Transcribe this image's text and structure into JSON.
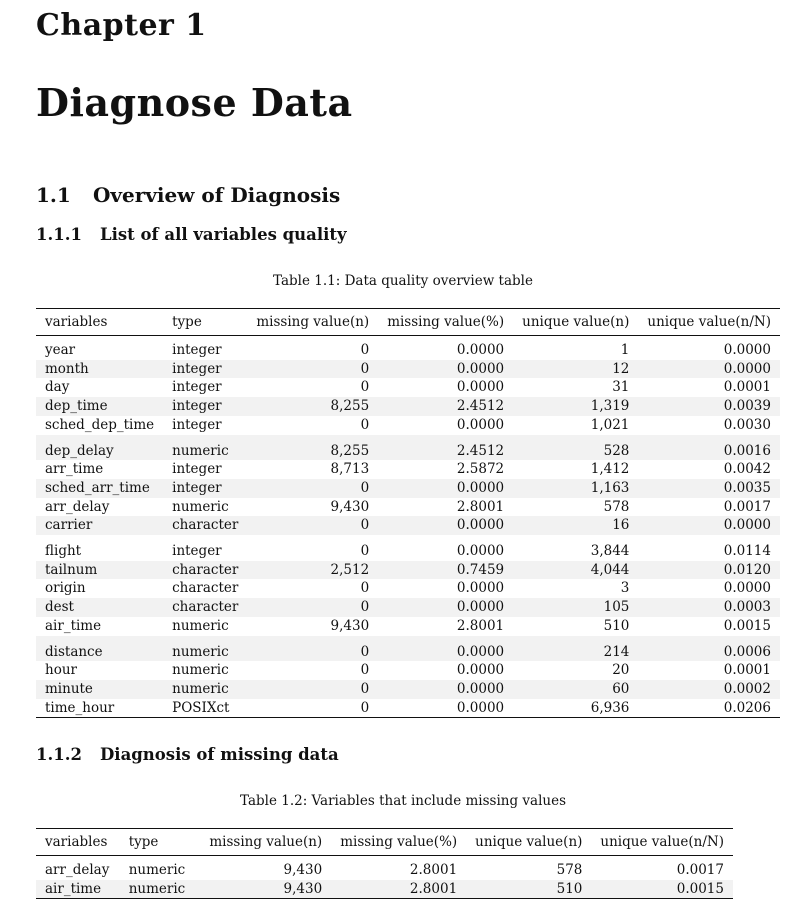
{
  "chapter": {
    "label": "Chapter 1",
    "title": "Diagnose Data"
  },
  "section": {
    "number": "1.1",
    "title": "Overview of Diagnosis"
  },
  "subsection1": {
    "number": "1.1.1",
    "title": "List of all variables quality"
  },
  "table1": {
    "caption": "Table 1.1: Data quality overview table",
    "headers": [
      "variables",
      "type",
      "missing value(n)",
      "missing value(%)",
      "unique value(n)",
      "unique value(n/N)"
    ],
    "rows": [
      [
        "year",
        "integer",
        "0",
        "0.0000",
        "1",
        "0.0000"
      ],
      [
        "month",
        "integer",
        "0",
        "0.0000",
        "12",
        "0.0000"
      ],
      [
        "day",
        "integer",
        "0",
        "0.0000",
        "31",
        "0.0001"
      ],
      [
        "dep_time",
        "integer",
        "8,255",
        "2.4512",
        "1,319",
        "0.0039"
      ],
      [
        "sched_dep_time",
        "integer",
        "0",
        "0.0000",
        "1,021",
        "0.0030"
      ],
      [
        "dep_delay",
        "numeric",
        "8,255",
        "2.4512",
        "528",
        "0.0016"
      ],
      [
        "arr_time",
        "integer",
        "8,713",
        "2.5872",
        "1,412",
        "0.0042"
      ],
      [
        "sched_arr_time",
        "integer",
        "0",
        "0.0000",
        "1,163",
        "0.0035"
      ],
      [
        "arr_delay",
        "numeric",
        "9,430",
        "2.8001",
        "578",
        "0.0017"
      ],
      [
        "carrier",
        "character",
        "0",
        "0.0000",
        "16",
        "0.0000"
      ],
      [
        "flight",
        "integer",
        "0",
        "0.0000",
        "3,844",
        "0.0114"
      ],
      [
        "tailnum",
        "character",
        "2,512",
        "0.7459",
        "4,044",
        "0.0120"
      ],
      [
        "origin",
        "character",
        "0",
        "0.0000",
        "3",
        "0.0000"
      ],
      [
        "dest",
        "character",
        "0",
        "0.0000",
        "105",
        "0.0003"
      ],
      [
        "air_time",
        "numeric",
        "9,430",
        "2.8001",
        "510",
        "0.0015"
      ],
      [
        "distance",
        "numeric",
        "0",
        "0.0000",
        "214",
        "0.0006"
      ],
      [
        "hour",
        "numeric",
        "0",
        "0.0000",
        "20",
        "0.0001"
      ],
      [
        "minute",
        "numeric",
        "0",
        "0.0000",
        "60",
        "0.0002"
      ],
      [
        "time_hour",
        "POSIXct",
        "0",
        "0.0000",
        "6,936",
        "0.0206"
      ]
    ]
  },
  "subsection2": {
    "number": "1.1.2",
    "title": "Diagnosis of missing data"
  },
  "table2": {
    "caption": "Table 1.2: Variables that include missing values",
    "headers": [
      "variables",
      "type",
      "missing value(n)",
      "missing value(%)",
      "unique value(n)",
      "unique value(n/N)"
    ],
    "rows": [
      [
        "arr_delay",
        "numeric",
        "9,430",
        "2.8001",
        "578",
        "0.0017"
      ],
      [
        "air_time",
        "numeric",
        "9,430",
        "2.8001",
        "510",
        "0.0015"
      ]
    ]
  }
}
